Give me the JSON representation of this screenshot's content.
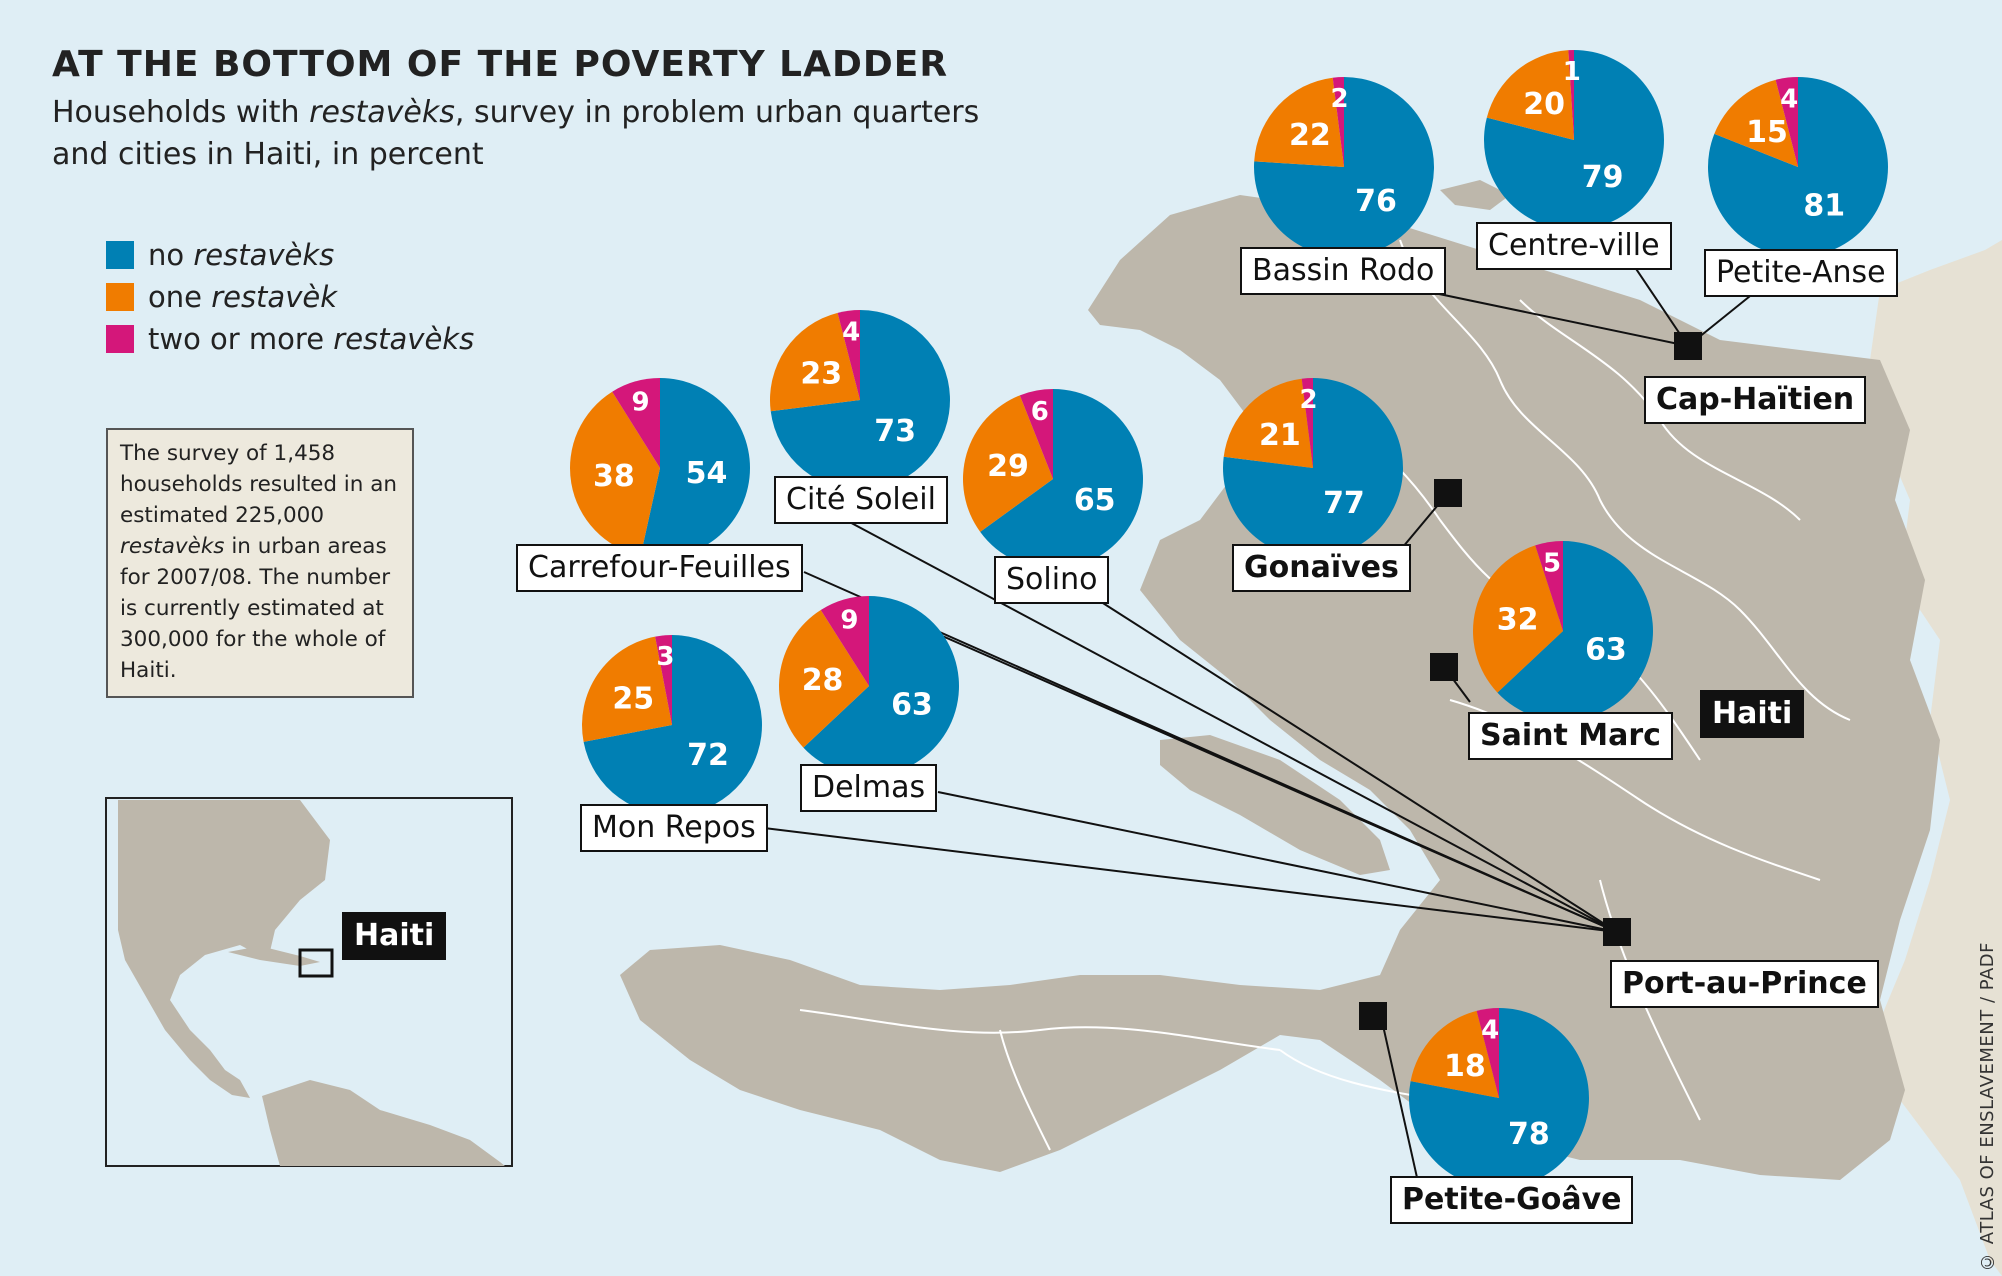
{
  "title": "AT THE BOTTOM OF THE POVERTY LADDER",
  "subtitle_pre": "Households with ",
  "subtitle_italic": "restavèks",
  "subtitle_post": ", survey in problem urban quarters and cities in Haiti, in percent",
  "legend": [
    {
      "pre": "no ",
      "italic": "restavèks",
      "color": "#0080b4"
    },
    {
      "pre": "one ",
      "italic": "restavèk",
      "color": "#f07c00"
    },
    {
      "pre": "two or more ",
      "italic": "restavèks",
      "color": "#d4177a"
    }
  ],
  "note": {
    "pre": "The survey of 1,458 households resulted in an estimated 225,000 ",
    "italic": "restavèks",
    "post": " in urban areas for 2007/08. The number is currently estimated at 300,000 for the whole of Haiti."
  },
  "credit": "© ATLAS OF ENSLAVEMENT / PADF",
  "inset_label": "Haiti",
  "country_label": "Haiti",
  "colors": {
    "ocean": "#dfeef5",
    "land": "#bdb7ab",
    "none": "#0080b4",
    "one": "#f07c00",
    "two": "#d4177a"
  },
  "places": {
    "cap": "Cap-Haïtien",
    "gonaives": "Gonaïves",
    "saint_marc": "Saint Marc",
    "port": "Port-au-Prince",
    "petite_goave": "Petite-Goâve",
    "bassin": "Bassin Rodo",
    "centre": "Centre-ville",
    "petite_anse": "Petite-Anse",
    "cite": "Cité Soleil",
    "carrefour": "Carrefour-Feuilles",
    "solino": "Solino",
    "delmas": "Delmas",
    "mon_repos": "Mon Repos"
  },
  "chart_data": [
    {
      "type": "pie",
      "name": "Bassin Rodo",
      "labels": [
        "no restavèks",
        "one restavèk",
        "two or more restavèks"
      ],
      "values": [
        76,
        22,
        2
      ]
    },
    {
      "type": "pie",
      "name": "Centre-ville",
      "labels": [
        "no restavèks",
        "one restavèk",
        "two or more restavèks"
      ],
      "values": [
        79,
        20,
        1
      ]
    },
    {
      "type": "pie",
      "name": "Petite-Anse",
      "labels": [
        "no restavèks",
        "one restavèk",
        "two or more restavèks"
      ],
      "values": [
        81,
        15,
        4
      ]
    },
    {
      "type": "pie",
      "name": "Cité Soleil",
      "labels": [
        "no restavèks",
        "one restavèk",
        "two or more restavèks"
      ],
      "values": [
        73,
        23,
        4
      ]
    },
    {
      "type": "pie",
      "name": "Carrefour-Feuilles",
      "labels": [
        "no restavèks",
        "one restavèk",
        "two or more restavèks"
      ],
      "values": [
        54,
        38,
        9
      ]
    },
    {
      "type": "pie",
      "name": "Solino",
      "labels": [
        "no restavèks",
        "one restavèk",
        "two or more restavèks"
      ],
      "values": [
        65,
        29,
        6
      ]
    },
    {
      "type": "pie",
      "name": "Gonaïves",
      "labels": [
        "no restavèks",
        "one restavèk",
        "two or more restavèks"
      ],
      "values": [
        77,
        21,
        2
      ]
    },
    {
      "type": "pie",
      "name": "Saint Marc",
      "labels": [
        "no restavèks",
        "one restavèk",
        "two or more restavèks"
      ],
      "values": [
        63,
        32,
        5
      ]
    },
    {
      "type": "pie",
      "name": "Mon Repos",
      "labels": [
        "no restavèks",
        "one restavèk",
        "two or more restavèks"
      ],
      "values": [
        72,
        25,
        3
      ]
    },
    {
      "type": "pie",
      "name": "Delmas",
      "labels": [
        "no restavèks",
        "one restavèk",
        "two or more restavèks"
      ],
      "values": [
        63,
        28,
        9
      ]
    },
    {
      "type": "pie",
      "name": "Petite-Goâve",
      "labels": [
        "no restavèks",
        "one restavèk",
        "two or more restavèks"
      ],
      "values": [
        78,
        18,
        4
      ]
    }
  ]
}
